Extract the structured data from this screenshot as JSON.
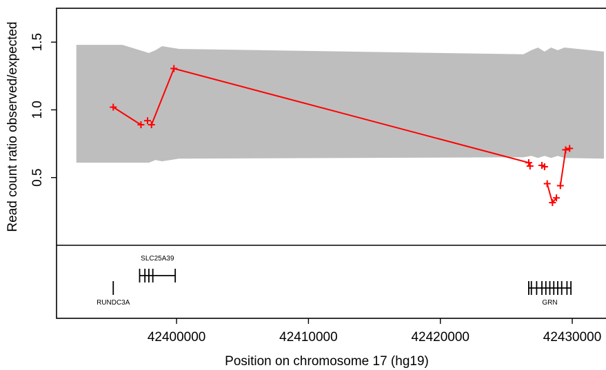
{
  "chart_data": {
    "type": "scatter",
    "title": "",
    "xlabel": "Position on chromosome 17 (hg19)",
    "ylabel": "Read count ratio observed/expected",
    "xlim": [
      42390900,
      42433500
    ],
    "ylim": [
      0,
      1.75
    ],
    "x_ticks": [
      42400000,
      42410000,
      42420000,
      42430000
    ],
    "x_tick_labels": [
      "42400000",
      "42410000",
      "42420000",
      "42430000"
    ],
    "y_ticks": [
      0.5,
      1.0,
      1.5
    ],
    "y_tick_labels": [
      "0.5",
      "1.0",
      "1.5"
    ],
    "grid": false,
    "legend": "none",
    "colors": {
      "series": "#ff0000",
      "band": "#bebebe",
      "axis": "#000000"
    },
    "band": {
      "x": [
        42392400,
        42395900,
        42397900,
        42398400,
        42398900,
        42400200,
        42426300,
        42426900,
        42427400,
        42427900,
        42428400,
        42428900,
        42429400,
        42432400
      ],
      "lower": [
        0.61,
        0.61,
        0.61,
        0.63,
        0.62,
        0.64,
        0.65,
        0.66,
        0.645,
        0.66,
        0.645,
        0.66,
        0.645,
        0.64
      ],
      "upper": [
        1.48,
        1.48,
        1.42,
        1.44,
        1.47,
        1.45,
        1.41,
        1.44,
        1.46,
        1.43,
        1.46,
        1.44,
        1.46,
        1.43
      ]
    },
    "series": [
      {
        "x": [
          42395200,
          42397300,
          42397800,
          42398100,
          42399800,
          42426700,
          42426800,
          42427700,
          42427900,
          42428100,
          42428500,
          42428800,
          42429100,
          42429500,
          42429800
        ],
        "y": [
          1.02,
          0.89,
          0.92,
          0.89,
          1.305,
          0.61,
          0.585,
          0.59,
          0.58,
          0.455,
          0.315,
          0.35,
          0.44,
          0.705,
          0.715
        ],
        "segments": [
          [
            0,
            1
          ],
          [
            3,
            4
          ],
          [
            4,
            5
          ],
          [
            9,
            10
          ],
          [
            10,
            11
          ],
          [
            12,
            13
          ]
        ]
      }
    ],
    "genes": [
      {
        "name": "SLC25A39",
        "strand_start": 42397200,
        "strand_end": 42399900,
        "exons": [
          42397200,
          42397600,
          42397900,
          42398200,
          42399900
        ],
        "label_position": "above"
      },
      {
        "name": "RUNDC3A",
        "strand_start": 42395200,
        "strand_end": 42395200,
        "exons": [
          42395200
        ],
        "label_position": "below"
      },
      {
        "name": "GRN",
        "strand_start": 42426700,
        "strand_end": 42429900,
        "exons": [
          42426700,
          42426900,
          42427300,
          42427700,
          42428000,
          42428300,
          42428600,
          42428900,
          42429200,
          42429600,
          42429900
        ],
        "label_position": "below"
      }
    ]
  }
}
